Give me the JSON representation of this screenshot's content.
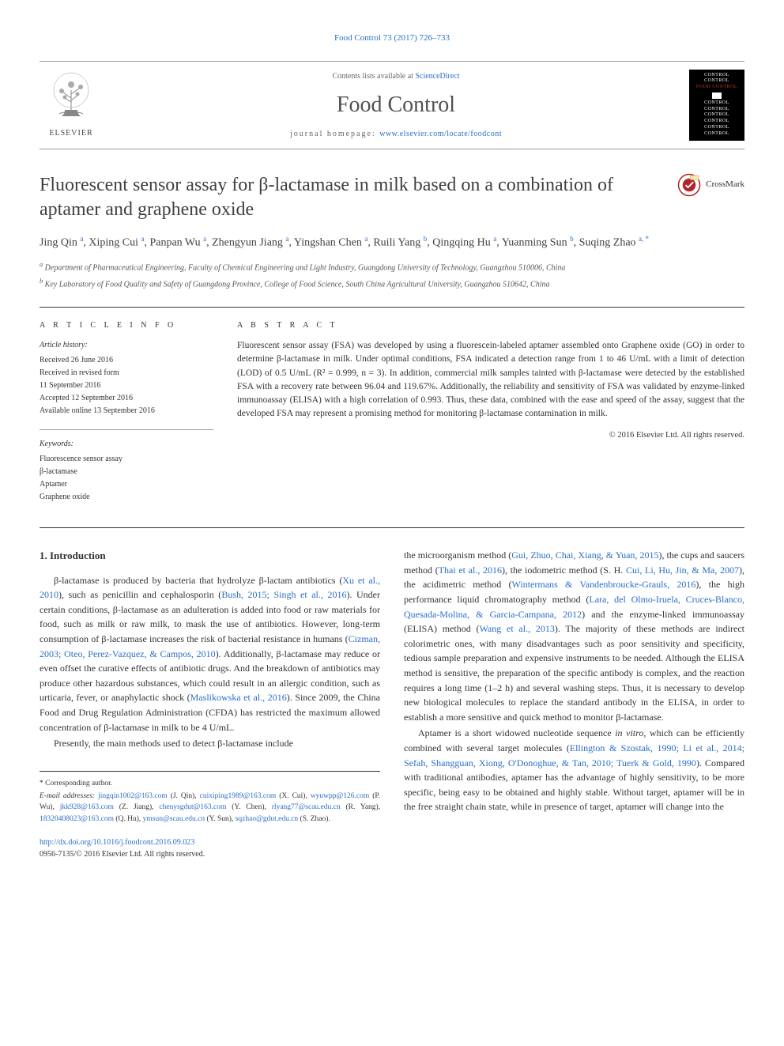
{
  "top_citation": "Food Control 73 (2017) 726–733",
  "header": {
    "contents_prefix": "Contents lists available at ",
    "contents_link": "ScienceDirect",
    "journal_title": "Food Control",
    "homepage_prefix": "journal homepage: ",
    "homepage_url": "www.elsevier.com/locate/foodcont",
    "publisher": "ELSEVIER",
    "cover_lines": [
      "CONTROL",
      "CONTROL",
      "FOOD CONTROL",
      "CONTROL",
      "CONTROL",
      "CONTROL",
      "CONTROL",
      "CONTROL",
      "CONTROL"
    ]
  },
  "article": {
    "title": "Fluorescent sensor assay for β-lactamase in milk based on a combination of aptamer and graphene oxide",
    "crossmark": "CrossMark",
    "authors_html": "Jing Qin <sup>a</sup>, Xiping Cui <sup>a</sup>, Panpan Wu <sup>a</sup>, Zhengyun Jiang <sup>a</sup>, Yingshan Chen <sup>a</sup>, Ruili Yang <sup>b</sup>, Qingqing Hu <sup>a</sup>, Yuanming Sun <sup>b</sup>, Suqing Zhao <sup>a, *</sup>",
    "affiliations": [
      {
        "marker": "a",
        "text": "Department of Pharmaceutical Engineering, Faculty of Chemical Engineering and Light Industry, Guangdong University of Technology, Guangzhou 510006, China"
      },
      {
        "marker": "b",
        "text": "Key Laboratory of Food Quality and Safety of Guangdong Province, College of Food Science, South China Agricultural University, Guangzhou 510642, China"
      }
    ]
  },
  "info": {
    "heading": "A R T I C L E   I N F O",
    "history_label": "Article history:",
    "history": [
      "Received 26 June 2016",
      "Received in revised form",
      "11 September 2016",
      "Accepted 12 September 2016",
      "Available online 13 September 2016"
    ],
    "keywords_label": "Keywords:",
    "keywords": [
      "Fluorescence sensor assay",
      "β-lactamase",
      "Aptamer",
      "Graphene oxide"
    ]
  },
  "abstract": {
    "heading": "A B S T R A C T",
    "text": "Fluorescent sensor assay (FSA) was developed by using a fluorescein-labeled aptamer assembled onto Graphene oxide (GO) in order to determine β-lactamase in milk. Under optimal conditions, FSA indicated a detection range from 1 to 46 U/mL with a limit of detection (LOD) of 0.5 U/mL (R² = 0.999, n = 3). In addition, commercial milk samples tainted with β-lactamase were detected by the established FSA with a recovery rate between 96.04 and 119.67%. Additionally, the reliability and sensitivity of FSA was validated by enzyme-linked immunoassay (ELISA) with a high correlation of 0.993. Thus, these data, combined with the ease and speed of the assay, suggest that the developed FSA may represent a promising method for monitoring β-lactamase contamination in milk.",
    "copyright": "© 2016 Elsevier Ltd. All rights reserved."
  },
  "body": {
    "sec1_heading": "1. Introduction",
    "col1_p1": "β-lactamase is produced by bacteria that hydrolyze β-lactam antibiotics (<span class='ref-link'>Xu et al., 2010</span>), such as penicillin and cephalosporin (<span class='ref-link'>Bush, 2015; Singh et al., 2016</span>). Under certain conditions, β-lactamase as an adulteration is added into food or raw materials for food, such as milk or raw milk, to mask the use of antibiotics. However, long-term consumption of β-lactamase increases the risk of bacterial resistance in humans (<span class='ref-link'>Cizman, 2003; Oteo, Perez-Vazquez, &amp; Campos, 2010</span>). Additionally, β-lactamase may reduce or even offset the curative effects of antibiotic drugs. And the breakdown of antibiotics may produce other hazardous substances, which could result in an allergic condition, such as urticaria, fever, or anaphylactic shock (<span class='ref-link'>Maslikowska et al., 2016</span>). Since 2009, the China Food and Drug Regulation Administration (CFDA) has restricted the maximum allowed concentration of β-lactamase in milk to be 4 U/mL.",
    "col1_p2": "Presently, the main methods used to detect β-lactamase include",
    "col2_p1": "the microorganism method (<span class='ref-link'>Gui, Zhuo, Chai, Xiang, &amp; Yuan, 2015</span>), the cups and saucers method (<span class='ref-link'>Thai et al., 2016</span>), the iodometric method (S. H. <span class='ref-link'>Cui, Li, Hu, Jin, &amp; Ma, 2007</span>), the acidimetric method (<span class='ref-link'>Wintermans &amp; Vandenbroucke-Grauls, 2016</span>), the high performance liquid chromatography method (<span class='ref-link'>Lara, del Olmo-Iruela, Cruces-Blanco, Quesada-Molina, &amp; Garcia-Campana, 2012</span>) and the enzyme-linked immunoassay (ELISA) method (<span class='ref-link'>Wang et al., 2013</span>). The majority of these methods are indirect colorimetric ones, with many disadvantages such as poor sensitivity and specificity, tedious sample preparation and expensive instruments to be needed. Although the ELISA method is sensitive, the preparation of the specific antibody is complex, and the reaction requires a long time (1–2 h) and several washing steps. Thus, it is necessary to develop new biological molecules to replace the standard antibody in the ELISA, in order to establish a more sensitive and quick method to monitor β-lactamase.",
    "col2_p2": "Aptamer is a short widowed nucleotide sequence <i>in vitro</i>, which can be efficiently combined with several target molecules (<span class='ref-link'>Ellington &amp; Szostak, 1990; Li et al., 2014; Sefah, Shangguan, Xiong, O'Donoghue, &amp; Tan, 2010; Tuerk &amp; Gold, 1990</span>). Compared with traditional antibodies, aptamer has the advantage of highly sensitivity, to be more specific, being easy to be obtained and highly stable. Without target, aptamer will be in the free straight chain state, while in presence of target, aptamer will change into the"
  },
  "footnotes": {
    "corr": "* Corresponding author.",
    "emails_label": "E-mail addresses:",
    "emails": "jingqin1002@163.com (J. Qin), cuixiping1989@163.com (X. Cui), wyuwpp@126.com (P. Wu), jkk928@163.com (Z. Jiang), chenysgdut@163.com (Y. Chen), rlyang77@scau.edu.cn (R. Yang), 18320408023@163.com (Q. Hu), ymsun@scau.edu.cn (Y. Sun), sqzhao@gdut.edu.cn (S. Zhao)."
  },
  "doi": {
    "url": "http://dx.doi.org/10.1016/j.foodcont.2016.09.023",
    "issn_line": "0956-7135/© 2016 Elsevier Ltd. All rights reserved."
  },
  "colors": {
    "link": "#2a6ec6",
    "text": "#333333",
    "heading": "#404040",
    "rule": "#333333"
  }
}
